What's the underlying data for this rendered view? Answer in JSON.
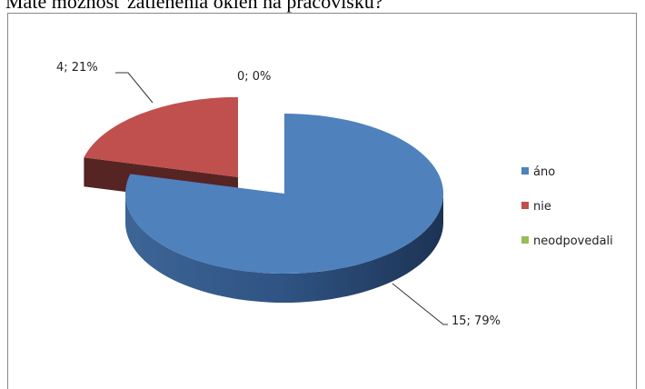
{
  "chart_data": {
    "type": "pie",
    "title": "Máte možnosť zatienenia okien na pracovisku?",
    "categories": [
      "áno",
      "nie",
      "neodpovedali"
    ],
    "values": [
      15,
      4,
      0
    ],
    "value_labels": [
      "15; 79%",
      "4; 21%",
      "0; 0%"
    ],
    "colors": [
      "#4f81bd",
      "#c0504d",
      "#9bbb59"
    ],
    "explode": [
      0,
      1,
      0
    ],
    "legend": "right"
  }
}
